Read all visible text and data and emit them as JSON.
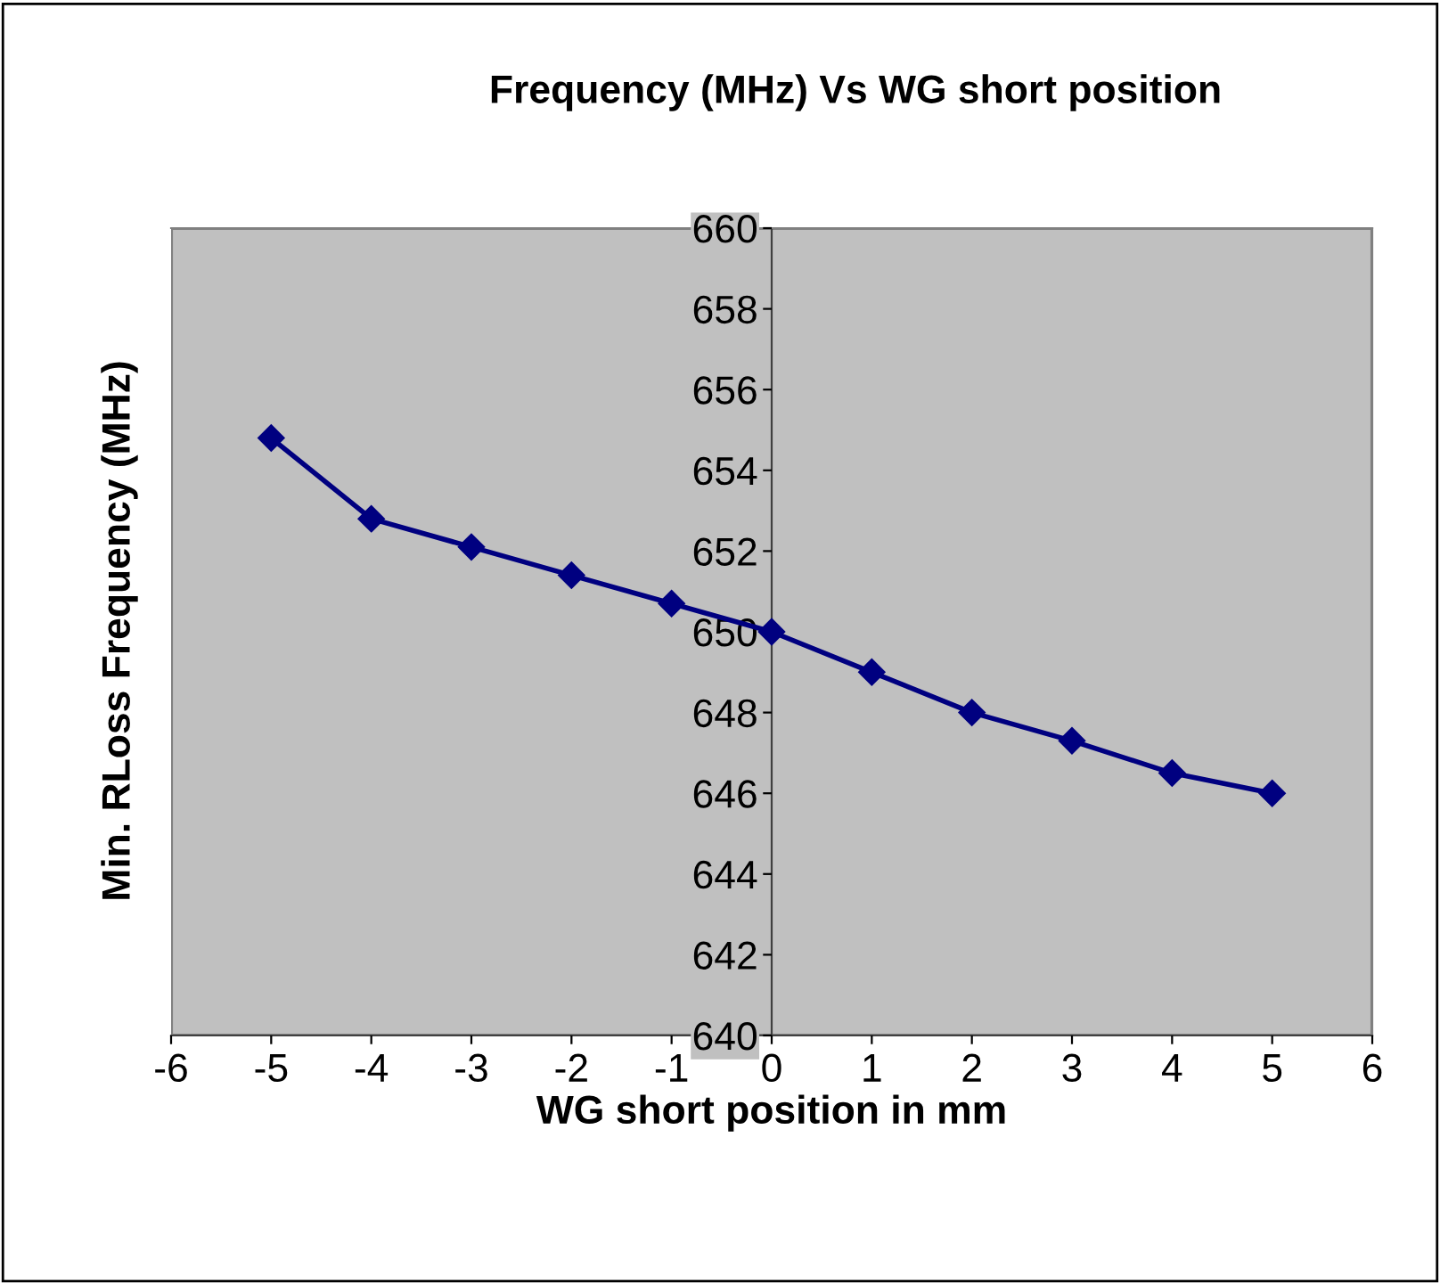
{
  "chart_data": {
    "type": "line",
    "title": "Frequency (MHz) Vs WG short position",
    "xlabel": "WG short position in mm",
    "ylabel": "Min. RLoss Frequency (MHz)",
    "x": [
      -5,
      -4,
      -3,
      -2,
      -1,
      0,
      1,
      2,
      3,
      4,
      5
    ],
    "series": [
      {
        "color": "#000080",
        "values": [
          654.8,
          652.8,
          652.1,
          651.4,
          650.7,
          650.0,
          649.0,
          648.0,
          647.3,
          646.5,
          646.0
        ]
      }
    ],
    "xlim": [
      -6,
      6
    ],
    "xticks": [
      -6,
      -5,
      -4,
      -3,
      -2,
      -1,
      0,
      1,
      2,
      3,
      4,
      5,
      6
    ],
    "ylim": [
      640,
      660
    ],
    "yticks": [
      640,
      642,
      644,
      646,
      648,
      650,
      652,
      654,
      656,
      658,
      660
    ],
    "grid": false,
    "legend": false,
    "marker": "diamond",
    "line_style": "solid"
  }
}
